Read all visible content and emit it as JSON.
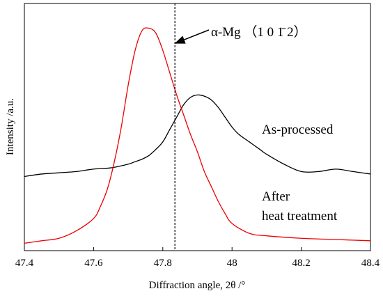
{
  "chart_data": {
    "type": "line",
    "title": "",
    "xlabel": "Diffraction angle, 2θ /°",
    "ylabel": "Intensity /a.u.",
    "xlim": [
      47.4,
      48.4
    ],
    "ylim": [
      0,
      100
    ],
    "x_ticks": [
      47.4,
      47.6,
      47.8,
      48.0,
      48.2,
      48.4
    ],
    "x_tick_labels": [
      "47.4",
      "47.6",
      "47.8",
      "48",
      "48.2",
      "48.4"
    ],
    "grid": false,
    "legend": "none",
    "series": [
      {
        "name": "As-processed",
        "color": "#000000",
        "x": [
          47.4,
          47.45,
          47.5,
          47.55,
          47.6,
          47.65,
          47.7,
          47.72,
          47.74,
          47.76,
          47.78,
          47.8,
          47.82,
          47.84,
          47.86,
          47.88,
          47.9,
          47.92,
          47.94,
          47.96,
          47.98,
          48.0,
          48.02,
          48.05,
          48.08,
          48.1,
          48.15,
          48.2,
          48.25,
          48.3,
          48.35,
          48.4
        ],
        "y": [
          30,
          31,
          31.5,
          32,
          33,
          33.5,
          35,
          36,
          37,
          38.5,
          41,
          44,
          49,
          54,
          59,
          62,
          63,
          62.5,
          61,
          58,
          54,
          50,
          47,
          44,
          41,
          39,
          35,
          32,
          32,
          33,
          32,
          31
        ]
      },
      {
        "name": "After heat treatment",
        "color": "#ee0000",
        "x": [
          47.4,
          47.45,
          47.5,
          47.55,
          47.6,
          47.62,
          47.64,
          47.66,
          47.68,
          47.7,
          47.72,
          47.74,
          47.76,
          47.78,
          47.8,
          47.82,
          47.84,
          47.86,
          47.88,
          47.9,
          47.92,
          47.94,
          47.96,
          47.98,
          48.0,
          48.05,
          48.1,
          48.2,
          48.3,
          48.4
        ],
        "y": [
          3,
          4,
          5,
          8,
          13,
          18,
          25,
          36,
          50,
          67,
          81,
          89,
          90,
          88,
          81,
          72,
          63,
          55,
          47,
          40,
          32,
          26,
          20,
          15,
          11,
          7,
          6,
          5,
          4.5,
          4
        ]
      }
    ],
    "annotations": [
      {
        "name": "peak-reference",
        "text": "α-Mg （1 0 1̄ 2）",
        "x": 47.835
      },
      {
        "name": "as-processed",
        "text": "As-processed"
      },
      {
        "name": "after-heat-1",
        "text": "After"
      },
      {
        "name": "after-heat-2",
        "text": "heat treatment"
      }
    ],
    "reference_line_x": 47.835
  }
}
